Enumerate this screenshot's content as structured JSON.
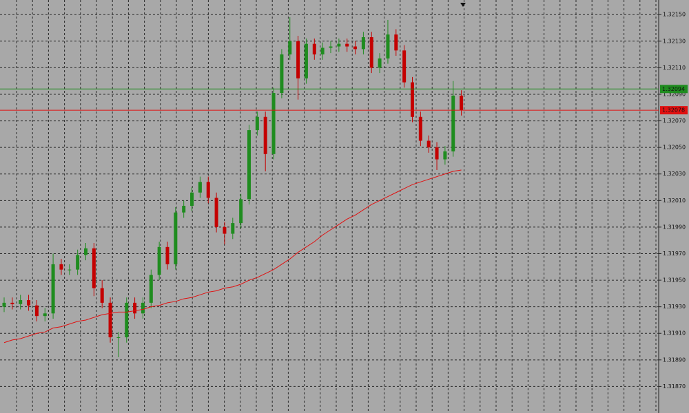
{
  "chart_data": {
    "type": "candlestick",
    "open": [
      1.3193,
      1.31933,
      1.31932,
      1.31935,
      1.31931,
      1.31923,
      1.31925,
      1.31962,
      1.31958,
      1.31958,
      1.31969,
      1.31974,
      1.31944,
      1.31933,
      1.31907,
      1.31907,
      1.31933,
      1.31925,
      1.31933,
      1.31954,
      1.31975,
      1.31962,
      1.32001,
      1.32006,
      1.32016,
      1.32024,
      1.32012,
      1.3199,
      1.31985,
      1.31993,
      1.32011,
      1.32063,
      1.32073,
      1.32045,
      1.32091,
      1.3212,
      1.3213,
      1.32102,
      1.32128,
      1.3212,
      1.32125,
      1.32126,
      1.32128,
      1.32126,
      1.32124,
      1.32133,
      1.3211,
      1.32117,
      1.32135,
      1.32123,
      1.32099,
      1.32073,
      1.32055,
      1.3205,
      1.32041,
      1.32047,
      1.32089
    ],
    "high": [
      1.31937,
      1.31937,
      1.31939,
      1.31939,
      1.31935,
      1.31929,
      1.3197,
      1.31966,
      1.31962,
      1.31973,
      1.31978,
      1.31978,
      1.3195,
      1.31937,
      1.31911,
      1.31937,
      1.31937,
      1.31937,
      1.31958,
      1.31979,
      1.31979,
      1.32005,
      1.3201,
      1.3202,
      1.32028,
      1.32028,
      1.32016,
      1.31994,
      1.31997,
      1.32015,
      1.32067,
      1.32077,
      1.32077,
      1.32095,
      1.32124,
      1.32148,
      1.32134,
      1.32132,
      1.32132,
      1.32129,
      1.3213,
      1.32132,
      1.32132,
      1.3213,
      1.32137,
      1.32137,
      1.32121,
      1.32146,
      1.32139,
      1.32127,
      1.32103,
      1.32077,
      1.32059,
      1.32054,
      1.32051,
      1.321,
      1.32093
    ],
    "low": [
      1.31926,
      1.31928,
      1.31928,
      1.31927,
      1.31919,
      1.31919,
      1.31921,
      1.31954,
      1.31954,
      1.31954,
      1.31965,
      1.31938,
      1.31929,
      1.31903,
      1.31892,
      1.31903,
      1.31921,
      1.31921,
      1.31929,
      1.3195,
      1.31958,
      1.31958,
      1.31997,
      1.32002,
      1.32012,
      1.32008,
      1.31986,
      1.31977,
      1.31981,
      1.31989,
      1.32007,
      1.32059,
      1.32032,
      1.32041,
      1.32087,
      1.32116,
      1.32086,
      1.32098,
      1.32116,
      1.32116,
      1.32121,
      1.32122,
      1.32122,
      1.3212,
      1.3212,
      1.32106,
      1.32106,
      1.32113,
      1.32119,
      1.32095,
      1.32069,
      1.32051,
      1.32046,
      1.32033,
      1.32037,
      1.32043,
      1.32074
    ],
    "close": [
      1.31933,
      1.31932,
      1.31935,
      1.31931,
      1.31923,
      1.31925,
      1.31962,
      1.31958,
      1.31958,
      1.31969,
      1.31974,
      1.31944,
      1.31933,
      1.31907,
      1.31907,
      1.31933,
      1.31925,
      1.31933,
      1.31954,
      1.31975,
      1.31962,
      1.32001,
      1.32006,
      1.32016,
      1.32024,
      1.32012,
      1.3199,
      1.31985,
      1.31993,
      1.32011,
      1.32063,
      1.32073,
      1.32045,
      1.32091,
      1.3212,
      1.3213,
      1.32102,
      1.32128,
      1.3212,
      1.32125,
      1.32126,
      1.32128,
      1.32126,
      1.32124,
      1.32133,
      1.3211,
      1.32117,
      1.32135,
      1.32123,
      1.32099,
      1.32073,
      1.32055,
      1.3205,
      1.32041,
      1.32047,
      1.32089,
      1.32078
    ],
    "up_color": "#1f8c1f",
    "down_color": "#c40000",
    "ma": {
      "color": "#e01010",
      "values": [
        1.31903,
        1.31905,
        1.31906,
        1.31908,
        1.3191,
        1.31911,
        1.31914,
        1.31915,
        1.31917,
        1.31919,
        1.3192,
        1.31922,
        1.31924,
        1.31925,
        1.31926,
        1.31926,
        1.31927,
        1.31928,
        1.3193,
        1.31931,
        1.31933,
        1.31934,
        1.31936,
        1.31937,
        1.31939,
        1.31941,
        1.31942,
        1.31944,
        1.31945,
        1.31947,
        1.3195,
        1.31952,
        1.31955,
        1.31958,
        1.31962,
        1.31966,
        1.31971,
        1.31975,
        1.31979,
        1.31984,
        1.31988,
        1.31992,
        1.31996,
        1.31999,
        1.32003,
        1.32007,
        1.3201,
        1.32013,
        1.32016,
        1.32019,
        1.32022,
        1.32024,
        1.32026,
        1.32028,
        1.3203,
        1.32032,
        1.32033
      ]
    },
    "levels": [
      {
        "value": 1.32094,
        "label": "1.32094",
        "color": "#1f8c1f"
      },
      {
        "value": 1.32078,
        "label": "1.32078",
        "color": "#e01010"
      }
    ],
    "ylim": [
      1.3185,
      1.32161
    ],
    "yticks": [
      {
        "value": 1.3215,
        "label": "1.32150"
      },
      {
        "value": 1.3213,
        "label": "1.32130"
      },
      {
        "value": 1.3211,
        "label": "1.32110"
      },
      {
        "value": 1.3209,
        "label": "1.32090"
      },
      {
        "value": 1.3207,
        "label": "1.32070"
      },
      {
        "value": 1.3205,
        "label": "1.32050"
      },
      {
        "value": 1.3203,
        "label": "1.32030"
      },
      {
        "value": 1.3201,
        "label": "1.32010"
      },
      {
        "value": 1.3199,
        "label": "1.31990"
      },
      {
        "value": 1.3197,
        "label": "1.31970"
      },
      {
        "value": 1.3195,
        "label": "1.31950"
      },
      {
        "value": 1.3193,
        "label": "1.31930"
      },
      {
        "value": 1.3191,
        "label": "1.31910"
      },
      {
        "value": 1.3189,
        "label": "1.31890"
      },
      {
        "value": 1.3187,
        "label": "1.31870"
      }
    ],
    "grid": true
  }
}
